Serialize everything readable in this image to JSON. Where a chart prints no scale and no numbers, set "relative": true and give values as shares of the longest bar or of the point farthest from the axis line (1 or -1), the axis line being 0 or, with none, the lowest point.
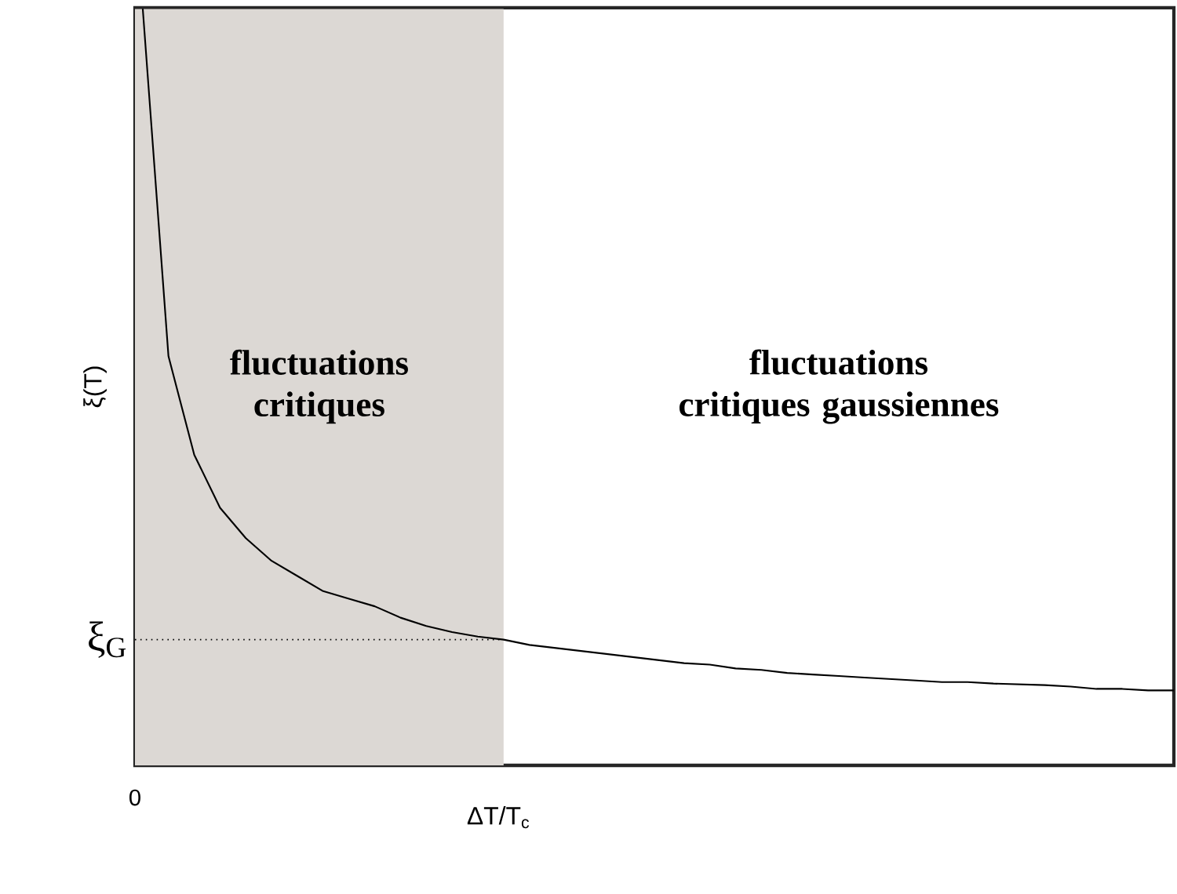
{
  "chart_data": {
    "type": "line",
    "relative": true,
    "xlabel": "ΔT/T$_{c}$",
    "ylabel": "ξ(T)",
    "categories": [
      null,
      null,
      null,
      null,
      null,
      null,
      null,
      null,
      null,
      null,
      null,
      null,
      null,
      null,
      null,
      null,
      null,
      null,
      null,
      null,
      null,
      null,
      null,
      null,
      null,
      null,
      null,
      null,
      null,
      null,
      null,
      null,
      null,
      null,
      null,
      null,
      null,
      null,
      null,
      null,
      null
    ],
    "series": [
      {
        "color": "#000000",
        "values": [
          1.0,
          0.54,
          0.41,
          0.34,
          0.3,
          0.27,
          0.25,
          0.23,
          0.22,
          0.21,
          0.195,
          0.184,
          0.176,
          0.17,
          0.166,
          0.159,
          0.155,
          0.151,
          0.147,
          0.143,
          0.139,
          0.135,
          0.133,
          0.128,
          0.126,
          0.122,
          0.12,
          0.118,
          0.116,
          0.114,
          0.112,
          0.11,
          0.11,
          0.108,
          0.107,
          0.106,
          0.104,
          0.101,
          0.101,
          0.099,
          0.099
        ]
      }
    ],
    "marker": "none",
    "line_style": "solid",
    "ref_lines": [
      {
        "axis": "y",
        "value": 0.166,
        "label": "ξ$_{G}$",
        "line_style": "dotted",
        "color": "#000000"
      }
    ],
    "annotations": [
      "fluctuations critiques",
      "fluctuations critiques gaussiennes",
      "0"
    ]
  }
}
